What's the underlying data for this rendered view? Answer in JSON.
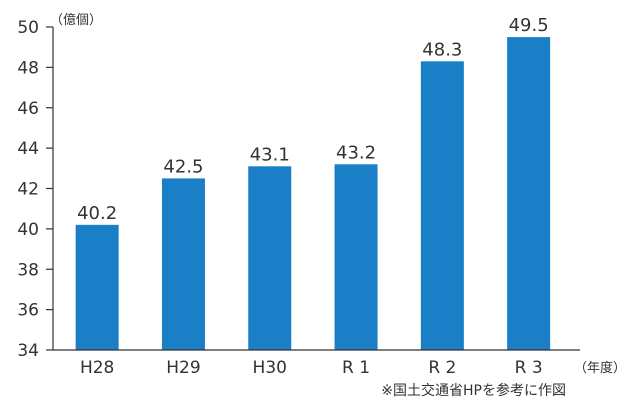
{
  "chart_data": {
    "type": "bar",
    "categories": [
      "H28",
      "H29",
      "H30",
      "R 1",
      "R 2",
      "R 3"
    ],
    "values": [
      40.2,
      42.5,
      43.1,
      43.2,
      48.3,
      49.5
    ],
    "data_labels": [
      "40.2",
      "42.5",
      "43.1",
      "43.2",
      "48.3",
      "49.5"
    ],
    "y_ticks": [
      "34",
      "36",
      "38",
      "40",
      "42",
      "44",
      "46",
      "48",
      "50"
    ],
    "ylim": [
      34,
      50
    ],
    "y_unit": "（億個）",
    "x_unit": "（年度）",
    "bar_color": "#1b7fc8",
    "grid": false,
    "legend": "none"
  },
  "note": "※国土交通省HPを参考に作図"
}
